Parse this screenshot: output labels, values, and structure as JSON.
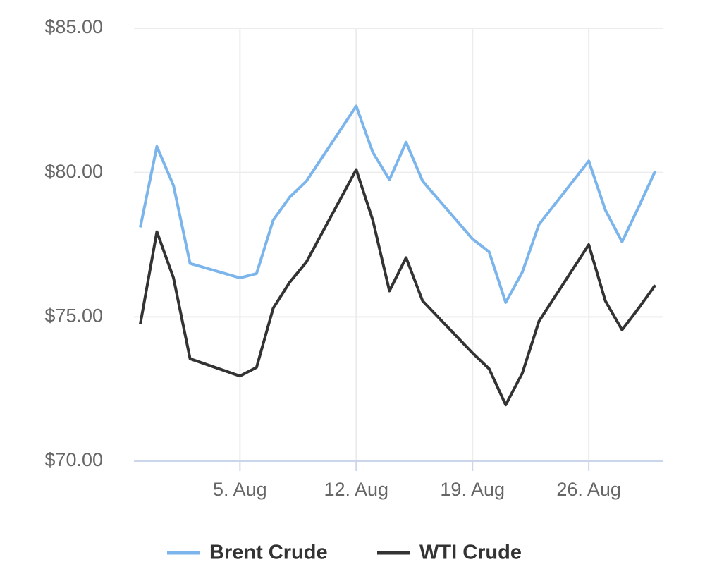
{
  "chart_data": {
    "type": "line",
    "x": [
      "07-30",
      "07-31",
      "08-01",
      "08-02",
      "08-05",
      "08-06",
      "08-07",
      "08-08",
      "08-09",
      "08-12",
      "08-13",
      "08-14",
      "08-15",
      "08-16",
      "08-19",
      "08-20",
      "08-21",
      "08-22",
      "08-23",
      "08-26",
      "08-27",
      "08-28",
      "08-29",
      "08-30"
    ],
    "series": [
      {
        "name": "Brent Crude",
        "color": "#7cb5ec",
        "values": [
          78.1,
          80.9,
          79.55,
          76.85,
          76.35,
          76.5,
          78.35,
          79.15,
          79.7,
          82.3,
          80.7,
          79.75,
          81.05,
          79.7,
          77.7,
          77.25,
          75.5,
          76.55,
          78.2,
          80.4,
          78.7,
          77.6,
          78.8,
          80.05
        ]
      },
      {
        "name": "WTI Crude",
        "color": "#333333",
        "values": [
          74.75,
          77.95,
          76.35,
          73.55,
          72.95,
          73.25,
          75.3,
          76.2,
          76.9,
          80.1,
          78.35,
          75.9,
          77.05,
          75.55,
          73.75,
          73.2,
          71.95,
          73.05,
          74.85,
          77.5,
          75.55,
          74.55,
          75.3,
          76.1
        ]
      }
    ],
    "ylim": [
      70,
      85
    ],
    "yticks": [
      {
        "value": 70,
        "label": "$70.00"
      },
      {
        "value": 75,
        "label": "$75.00"
      },
      {
        "value": 80,
        "label": "$80.00"
      },
      {
        "value": 85,
        "label": "$85.00"
      }
    ],
    "xticks": [
      {
        "value": "08-05",
        "label": "5. Aug"
      },
      {
        "value": "08-12",
        "label": "12. Aug"
      },
      {
        "value": "08-19",
        "label": "19. Aug"
      },
      {
        "value": "08-26",
        "label": "26. Aug"
      }
    ],
    "grid": true
  }
}
